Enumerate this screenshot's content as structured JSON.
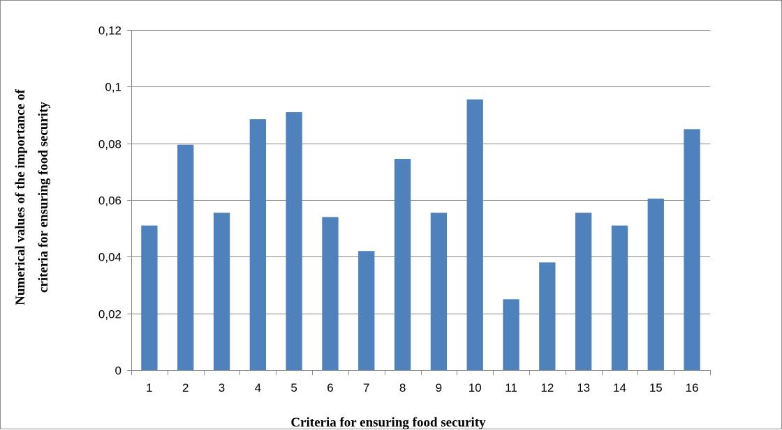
{
  "chart_data": {
    "type": "bar",
    "title": "",
    "xlabel": "Criteria  for ensuring  food security",
    "ylabel_lines": [
      "Numerical  values of the importance of",
      "criteria  for ensuring  food security"
    ],
    "categories": [
      "1",
      "2",
      "3",
      "4",
      "5",
      "6",
      "7",
      "8",
      "9",
      "10",
      "11",
      "12",
      "13",
      "14",
      "15",
      "16"
    ],
    "values": [
      0.051,
      0.0795,
      0.0555,
      0.0885,
      0.091,
      0.054,
      0.042,
      0.0745,
      0.0555,
      0.0955,
      0.025,
      0.038,
      0.0555,
      0.051,
      0.0605,
      0.085
    ],
    "ylim": [
      0,
      0.12
    ],
    "y_ticks": [
      0,
      0.02,
      0.04,
      0.06,
      0.08,
      0.1,
      0.12
    ],
    "y_tick_labels": [
      "0",
      "0,02",
      "0,04",
      "0,06",
      "0,08",
      "0,1",
      "0,12"
    ],
    "grid": "horizontal",
    "legend": "none",
    "bar_color": "#4f81bd",
    "grid_color": "#868686",
    "axis_color": "#868686"
  }
}
